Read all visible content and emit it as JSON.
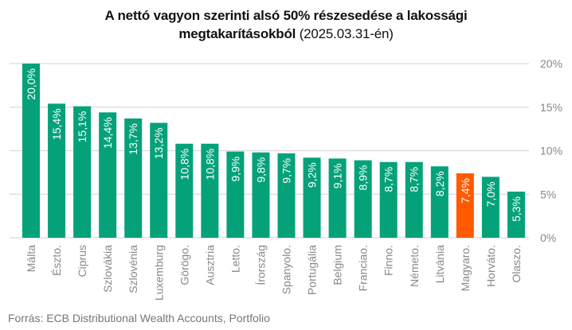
{
  "chart_data": {
    "type": "bar",
    "title_bold_line1": "A nettó vagyon szerinti alsó 50% részesedése a lakossági",
    "title_bold_line2": "megtakarításokból",
    "title_suffix": "(2025.03.31-én)",
    "categories": [
      "Málta",
      "Észto.",
      "Ciprus",
      "Szlovákia",
      "Szlovénia",
      "Luxemburg",
      "Görögo.",
      "Ausztria",
      "Letto.",
      "Írország",
      "Spanyolo.",
      "Portugália",
      "Belgium",
      "Franciao.",
      "Finno.",
      "Németo.",
      "Litvánia",
      "Magyaro.",
      "Horváto.",
      "Olaszo."
    ],
    "values": [
      20.0,
      15.4,
      15.1,
      14.4,
      13.7,
      13.2,
      10.8,
      10.8,
      9.9,
      9.8,
      9.7,
      9.2,
      9.1,
      8.9,
      8.7,
      8.7,
      8.2,
      7.4,
      7.0,
      5.3
    ],
    "value_labels": [
      "20,0%",
      "15,4%",
      "15,1%",
      "14,4%",
      "13,7%",
      "13,2%",
      "10,8%",
      "10,8%",
      "9,9%",
      "9,8%",
      "9,7%",
      "9,2%",
      "9,1%",
      "8,9%",
      "8,7%",
      "8,7%",
      "8,2%",
      "7,4%",
      "7,0%",
      "5,3%"
    ],
    "highlight_index": 17,
    "ylim": [
      0,
      20
    ],
    "yticks": [
      0,
      5,
      10,
      15,
      20
    ],
    "ytick_labels": [
      "0%",
      "5%",
      "10%",
      "15%",
      "20%"
    ],
    "y_axis_side": "right",
    "grid": true,
    "xlabel": "",
    "ylabel": "",
    "colors": {
      "bar": "#05a27a",
      "highlight": "#ff5a00",
      "grid": "#d9d9d9",
      "label": "#888888"
    }
  },
  "source": "Forrás: ECB Distributional Wealth Accounts, Portfolio"
}
